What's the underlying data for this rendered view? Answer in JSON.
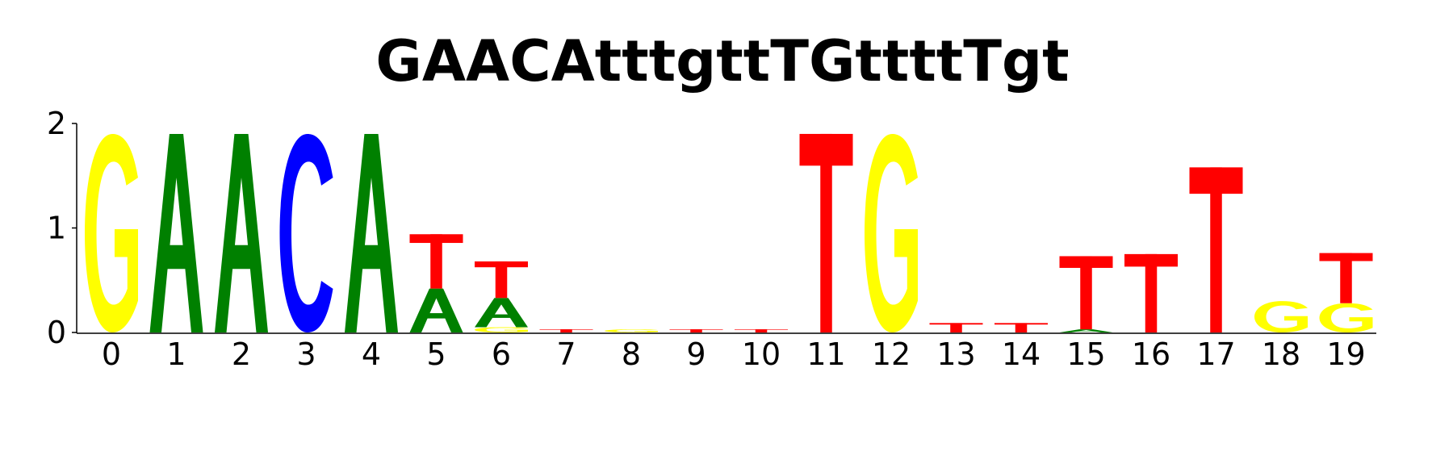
{
  "chart_data": {
    "type": "sequence-logo",
    "title": "GAACAtttgttTGttttTgt",
    "xlabel": "",
    "ylabel": "",
    "ylim": [
      0,
      2
    ],
    "yticks": [
      "0",
      "1",
      "2"
    ],
    "categories": [
      "0",
      "1",
      "2",
      "3",
      "4",
      "5",
      "6",
      "7",
      "8",
      "9",
      "10",
      "11",
      "12",
      "13",
      "14",
      "15",
      "16",
      "17",
      "18",
      "19"
    ],
    "colors": {
      "A": "#008000",
      "C": "#0000ff",
      "G": "#ffff00",
      "T": "#ff0000"
    },
    "positions": [
      {
        "x": "0",
        "letters": [
          {
            "base": "G",
            "bits": 1.9
          }
        ]
      },
      {
        "x": "1",
        "letters": [
          {
            "base": "A",
            "bits": 1.9
          }
        ]
      },
      {
        "x": "2",
        "letters": [
          {
            "base": "A",
            "bits": 1.9
          }
        ]
      },
      {
        "x": "3",
        "letters": [
          {
            "base": "C",
            "bits": 1.9
          }
        ]
      },
      {
        "x": "4",
        "letters": [
          {
            "base": "A",
            "bits": 1.9
          }
        ]
      },
      {
        "x": "5",
        "letters": [
          {
            "base": "A",
            "bits": 0.42
          },
          {
            "base": "T",
            "bits": 0.52
          }
        ]
      },
      {
        "x": "6",
        "letters": [
          {
            "base": "G",
            "bits": 0.05
          },
          {
            "base": "A",
            "bits": 0.28
          },
          {
            "base": "T",
            "bits": 0.35
          }
        ]
      },
      {
        "x": "7",
        "letters": [
          {
            "base": "T",
            "bits": 0.03
          }
        ]
      },
      {
        "x": "8",
        "letters": [
          {
            "base": "G",
            "bits": 0.03
          }
        ]
      },
      {
        "x": "9",
        "letters": [
          {
            "base": "T",
            "bits": 0.03
          }
        ]
      },
      {
        "x": "10",
        "letters": [
          {
            "base": "T",
            "bits": 0.03
          }
        ]
      },
      {
        "x": "11",
        "letters": [
          {
            "base": "T",
            "bits": 1.9
          }
        ]
      },
      {
        "x": "12",
        "letters": [
          {
            "base": "G",
            "bits": 1.9
          }
        ]
      },
      {
        "x": "13",
        "letters": [
          {
            "base": "T",
            "bits": 0.09
          }
        ]
      },
      {
        "x": "14",
        "letters": [
          {
            "base": "T",
            "bits": 0.09
          }
        ]
      },
      {
        "x": "15",
        "letters": [
          {
            "base": "A",
            "bits": 0.03
          },
          {
            "base": "T",
            "bits": 0.7
          }
        ]
      },
      {
        "x": "16",
        "letters": [
          {
            "base": "T",
            "bits": 0.75
          }
        ]
      },
      {
        "x": "17",
        "letters": [
          {
            "base": "T",
            "bits": 1.58
          }
        ]
      },
      {
        "x": "18",
        "letters": [
          {
            "base": "G",
            "bits": 0.3
          }
        ]
      },
      {
        "x": "19",
        "letters": [
          {
            "base": "G",
            "bits": 0.28
          },
          {
            "base": "T",
            "bits": 0.48
          }
        ]
      }
    ]
  }
}
